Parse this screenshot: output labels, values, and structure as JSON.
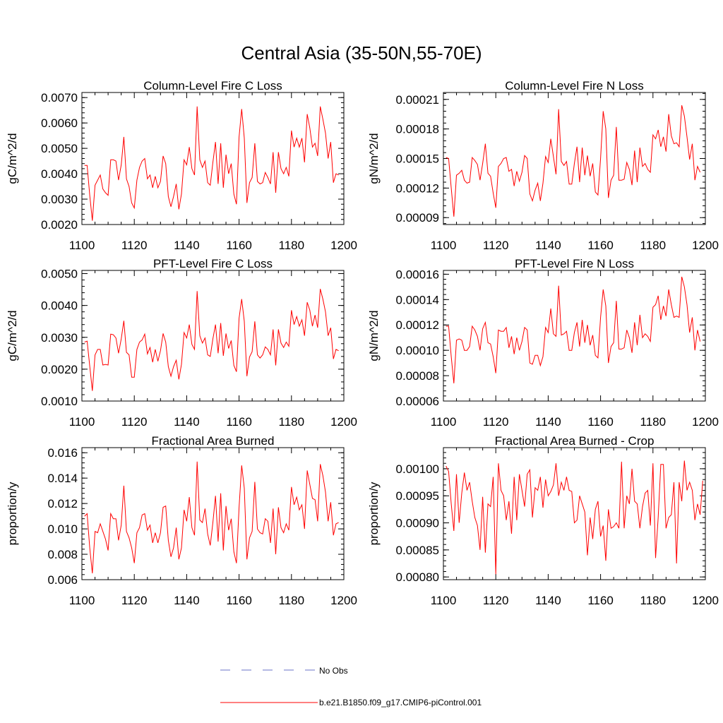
{
  "figure_title": "Central Asia (35-50N,55-70E)",
  "colors": {
    "series": "#ff0000",
    "no_obs": "#6a73c8",
    "axis": "#000000"
  },
  "legend": {
    "items": [
      {
        "label": "No Obs",
        "style": "dashed",
        "color": "#6a73c8"
      },
      {
        "label": "b.e21.B1850.f09_g17.CMIP6-piControl.001",
        "style": "solid",
        "color": "#ff0000"
      }
    ]
  },
  "chart_data": [
    {
      "type": "line",
      "title": "Column-Level Fire C Loss",
      "ylabel": "gC/m^2/d",
      "xlabel": "",
      "xlim": [
        1100,
        1200
      ],
      "ylim": [
        0.002,
        0.0072
      ],
      "xticks": [
        1100,
        1120,
        1140,
        1160,
        1180,
        1200
      ],
      "yticks": [
        "0.0020",
        "0.0030",
        "0.0040",
        "0.0050",
        "0.0060",
        "0.0070"
      ],
      "x_start": 1101,
      "series": [
        {
          "name": "b.e21.B1850.f09_g17.CMIP6-piControl.001",
          "values": [
            0.00433,
            0.00433,
            0.00315,
            0.00215,
            0.00355,
            0.00375,
            0.00395,
            0.0034,
            0.00325,
            0.00315,
            0.00455,
            0.00455,
            0.0045,
            0.00375,
            0.00435,
            0.00545,
            0.0038,
            0.0035,
            0.00285,
            0.00265,
            0.00375,
            0.00425,
            0.0045,
            0.0046,
            0.0038,
            0.00395,
            0.00345,
            0.0039,
            0.00345,
            0.0037,
            0.0047,
            0.0044,
            0.0031,
            0.0027,
            0.0031,
            0.0036,
            0.0026,
            0.0032,
            0.00455,
            0.00435,
            0.00505,
            0.0042,
            0.00395,
            0.00665,
            0.00455,
            0.00425,
            0.0045,
            0.00365,
            0.00355,
            0.00445,
            0.00525,
            0.0036,
            0.0052,
            0.00345,
            0.00475,
            0.004,
            0.0044,
            0.0032,
            0.0028,
            0.00545,
            0.00655,
            0.0054,
            0.00285,
            0.00365,
            0.00385,
            0.0052,
            0.0037,
            0.0036,
            0.00365,
            0.00405,
            0.00385,
            0.0036,
            0.00485,
            0.00325,
            0.00485,
            0.0042,
            0.004,
            0.00425,
            0.0039,
            0.0057,
            0.00505,
            0.0054,
            0.00505,
            0.0054,
            0.00445,
            0.00635,
            0.0058,
            0.00505,
            0.0052,
            0.0047,
            0.00665,
            0.00615,
            0.0056,
            0.0046,
            0.00525,
            0.00365,
            0.004,
            0.00395
          ]
        }
      ]
    },
    {
      "type": "line",
      "title": "Column-Level Fire N Loss",
      "ylabel": "gN/m^2/d",
      "xlabel": "",
      "xlim": [
        1100,
        1200
      ],
      "ylim": [
        8.3e-05,
        0.000217
      ],
      "xticks": [
        1100,
        1120,
        1140,
        1160,
        1180,
        1200
      ],
      "yticks": [
        "0.00009",
        "0.00012",
        "0.00015",
        "0.00018",
        "0.00021"
      ],
      "x_start": 1101,
      "series": [
        {
          "name": "b.e21.B1850.f09_g17.CMIP6-piControl.001",
          "values": [
            0.000151,
            0.00015,
            0.00012,
            9.1e-05,
            0.000133,
            0.000135,
            0.000138,
            0.000128,
            0.000125,
            0.000126,
            0.000151,
            0.000148,
            0.000144,
            0.000128,
            0.000145,
            0.000165,
            0.000135,
            0.000132,
            0.000115,
            0.0001,
            0.000142,
            0.000145,
            0.00015,
            0.000151,
            0.000137,
            0.000139,
            0.000122,
            0.000137,
            0.000127,
            0.000136,
            0.000153,
            0.00015,
            0.000114,
            0.000107,
            0.000118,
            0.000125,
            0.000107,
            0.000125,
            0.000152,
            0.000146,
            0.00017,
            0.000152,
            0.000134,
            0.0002,
            0.000147,
            0.000143,
            0.000147,
            0.000124,
            0.000124,
            0.000145,
            0.000162,
            0.000126,
            0.000161,
            0.000133,
            0.000153,
            0.000132,
            0.000145,
            0.000116,
            0.000113,
            0.00015,
            0.000198,
            0.00018,
            0.00011,
            0.000128,
            0.000133,
            0.000182,
            0.000128,
            0.000128,
            0.000129,
            0.000146,
            0.000139,
            0.000123,
            0.000158,
            0.000126,
            0.000161,
            0.000142,
            0.000145,
            0.000139,
            0.000136,
            0.000174,
            0.00017,
            0.000179,
            0.000162,
            0.000172,
            0.000157,
            0.000195,
            0.000173,
            0.000165,
            0.000166,
            0.000162,
            0.000204,
            0.000193,
            0.000172,
            0.000149,
            0.000165,
            0.000128,
            0.000142,
            0.000136
          ]
        }
      ]
    },
    {
      "type": "line",
      "title": "PFT-Level Fire C Loss",
      "ylabel": "gC/m^2/d",
      "xlabel": "",
      "xlim": [
        1100,
        1200
      ],
      "ylim": [
        0.001,
        0.0051
      ],
      "xticks": [
        1100,
        1120,
        1140,
        1160,
        1180,
        1200
      ],
      "yticks": [
        "0.0010",
        "0.0020",
        "0.0030",
        "0.0040",
        "0.0050"
      ],
      "x_start": 1101,
      "series": [
        {
          "name": "b.e21.B1850.f09_g17.CMIP6-piControl.001",
          "values": [
            0.00285,
            0.00288,
            0.0021,
            0.00132,
            0.00245,
            0.00262,
            0.00262,
            0.00213,
            0.00215,
            0.00213,
            0.0031,
            0.00308,
            0.00298,
            0.0025,
            0.00295,
            0.00352,
            0.00253,
            0.00245,
            0.00175,
            0.00175,
            0.00262,
            0.00285,
            0.00292,
            0.0031,
            0.00248,
            0.00268,
            0.00222,
            0.00262,
            0.00225,
            0.00258,
            0.00312,
            0.00285,
            0.00208,
            0.00178,
            0.00208,
            0.00228,
            0.00168,
            0.00215,
            0.00315,
            0.00298,
            0.0034,
            0.00278,
            0.00262,
            0.00445,
            0.00305,
            0.00282,
            0.00298,
            0.00245,
            0.0024,
            0.00295,
            0.0034,
            0.0025,
            0.00345,
            0.00242,
            0.00312,
            0.00265,
            0.0029,
            0.00212,
            0.00192,
            0.0036,
            0.0042,
            0.0035,
            0.00178,
            0.00238,
            0.00255,
            0.0035,
            0.00245,
            0.00235,
            0.00245,
            0.0027,
            0.00262,
            0.00245,
            0.00325,
            0.00212,
            0.00325,
            0.00282,
            0.00268,
            0.00285,
            0.00272,
            0.00385,
            0.0034,
            0.00365,
            0.00335,
            0.00355,
            0.00305,
            0.0041,
            0.00385,
            0.00335,
            0.0037,
            0.0033,
            0.00452,
            0.0042,
            0.0038,
            0.00305,
            0.0033,
            0.00232,
            0.00262,
            0.00258
          ]
        }
      ]
    },
    {
      "type": "line",
      "title": "PFT-Level Fire N Loss",
      "ylabel": "gN/m^2/d",
      "xlabel": "",
      "xlim": [
        1100,
        1200
      ],
      "ylim": [
        6e-05,
        0.000163
      ],
      "xticks": [
        1100,
        1120,
        1140,
        1160,
        1180,
        1200
      ],
      "yticks": [
        "0.00006",
        "0.00008",
        "0.00010",
        "0.00012",
        "0.00014",
        "0.00016"
      ],
      "x_start": 1101,
      "series": [
        {
          "name": "b.e21.B1850.f09_g17.CMIP6-piControl.001",
          "values": [
            0.000119,
            0.000119,
            9.5e-05,
            7.4e-05,
            0.000108,
            0.000109,
            0.000108,
            0.0001,
            0.0001,
            0.000103,
            0.000119,
            0.000116,
            0.000111,
            0.0001,
            0.000117,
            0.000122,
            0.000106,
            0.000105,
            9.5e-05,
            8.2e-05,
            0.000116,
            0.000115,
            0.000115,
            0.000118,
            0.000102,
            0.000111,
            9.7e-05,
            0.00011,
            0.0001,
            0.000107,
            0.000118,
            0.000116,
            9e-05,
            8.9e-05,
            9.6e-05,
            9.6e-05,
            8.8e-05,
            9.5e-05,
            0.000118,
            0.000114,
            0.000133,
            0.000113,
            0.000111,
            0.000151,
            0.000112,
            0.000113,
            0.000115,
            0.0001,
            0.0001,
            0.000114,
            0.000122,
            0.000103,
            0.000124,
            0.000106,
            0.00012,
            0.000104,
            0.000112,
            9.6e-05,
            9.4e-05,
            0.000126,
            0.000148,
            0.000135,
            9e-05,
            0.000103,
            0.000106,
            0.000139,
            0.000101,
            0.000101,
            0.000102,
            0.000116,
            0.00011,
            9.8e-05,
            0.000122,
            0.000104,
            0.000128,
            0.00011,
            0.000113,
            0.000111,
            0.000107,
            0.000134,
            0.000136,
            0.000143,
            0.000124,
            0.000135,
            0.000127,
            0.000148,
            0.000136,
            0.000126,
            0.000127,
            0.000126,
            0.000158,
            0.00015,
            0.000136,
            0.000114,
            0.000126,
            0.0001,
            0.000116,
            0.000107
          ]
        }
      ]
    },
    {
      "type": "line",
      "title": "Fractional Area Burned",
      "ylabel": "proportion/y",
      "xlabel": "",
      "xlim": [
        1100,
        1200
      ],
      "ylim": [
        0.006,
        0.0164
      ],
      "xticks": [
        1100,
        1120,
        1140,
        1160,
        1180,
        1200
      ],
      "yticks": [
        "0.006",
        "0.008",
        "0.010",
        "0.012",
        "0.014",
        "0.016"
      ],
      "x_start": 1101,
      "series": [
        {
          "name": "b.e21.B1850.f09_g17.CMIP6-piControl.001",
          "values": [
            0.011,
            0.0112,
            0.0085,
            0.0065,
            0.0098,
            0.0097,
            0.0104,
            0.0098,
            0.0092,
            0.0083,
            0.0112,
            0.0108,
            0.0108,
            0.0091,
            0.0103,
            0.0134,
            0.0098,
            0.0093,
            0.0085,
            0.0073,
            0.0097,
            0.0101,
            0.0111,
            0.0112,
            0.0099,
            0.0103,
            0.0089,
            0.0097,
            0.0089,
            0.0097,
            0.0117,
            0.0118,
            0.0091,
            0.0078,
            0.0085,
            0.0101,
            0.0076,
            0.0085,
            0.0115,
            0.0106,
            0.0125,
            0.0101,
            0.0095,
            0.0153,
            0.0107,
            0.0105,
            0.0116,
            0.0096,
            0.0087,
            0.0105,
            0.0126,
            0.009,
            0.0128,
            0.0083,
            0.0118,
            0.0099,
            0.0108,
            0.0082,
            0.0073,
            0.0117,
            0.015,
            0.0132,
            0.0076,
            0.0093,
            0.0098,
            0.0137,
            0.01,
            0.0097,
            0.0096,
            0.0108,
            0.0106,
            0.0089,
            0.0116,
            0.008,
            0.0117,
            0.0101,
            0.0097,
            0.0104,
            0.0099,
            0.0133,
            0.0119,
            0.0125,
            0.0115,
            0.0119,
            0.01,
            0.0146,
            0.0135,
            0.0124,
            0.0123,
            0.0106,
            0.0151,
            0.0142,
            0.0129,
            0.0106,
            0.0121,
            0.0095,
            0.0104,
            0.0105
          ]
        }
      ]
    },
    {
      "type": "line",
      "title": "Fractional Area Burned - Crop",
      "ylabel": "proportion/y",
      "xlabel": "",
      "xlim": [
        1100,
        1200
      ],
      "ylim": [
        0.000795,
        0.001039
      ],
      "xticks": [
        1100,
        1120,
        1140,
        1160,
        1180,
        1200
      ],
      "yticks": [
        "0.00080",
        "0.00085",
        "0.00090",
        "0.00095",
        "0.00100"
      ],
      "x_start": 1101,
      "series": [
        {
          "name": "b.e21.B1850.f09_g17.CMIP6-piControl.001",
          "values": [
            0.001005,
            0.000995,
            0.000935,
            0.000885,
            0.00099,
            0.0009,
            0.000955,
            0.000993,
            0.00096,
            0.000975,
            0.00094,
            0.00091,
            0.000895,
            0.00085,
            0.000948,
            0.000845,
            0.000935,
            0.00093,
            0.000985,
            0.000805,
            0.00101,
            0.00096,
            0.00095,
            0.000905,
            0.00094,
            0.00088,
            0.000985,
            0.000905,
            0.00099,
            0.00096,
            0.00093,
            0.00099,
            0.000998,
            0.00091,
            0.000965,
            0.00096,
            0.000985,
            0.000928,
            0.00098,
            0.00095,
            0.000958,
            0.00097,
            0.00101,
            0.00095,
            0.000975,
            0.00096,
            0.000985,
            0.00096,
            0.000958,
            0.0009,
            0.000905,
            0.00095,
            0.000935,
            0.00092,
            0.00084,
            0.00091,
            0.00087,
            0.000925,
            0.00094,
            0.000875,
            0.000895,
            0.00083,
            0.000925,
            0.00089,
            0.000893,
            0.0009,
            0.00089,
            0.001013,
            0.00089,
            0.00095,
            0.000935,
            0.001,
            0.00094,
            0.000935,
            0.00089,
            0.00093,
            0.000955,
            0.00096,
            0.000895,
            0.00101,
            0.000835,
            0.00091,
            0.001008,
            0.001008,
            0.00089,
            0.00091,
            0.000915,
            0.000975,
            0.000825,
            0.000975,
            0.00094,
            0.001015,
            0.00096,
            0.000975,
            0.00096,
            0.000905,
            0.000935,
            0.000915,
            0.000978
          ]
        }
      ]
    }
  ]
}
